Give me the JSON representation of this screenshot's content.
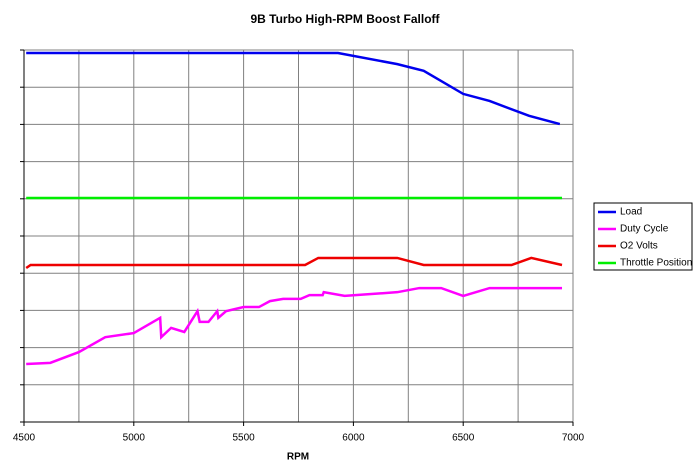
{
  "chart_data": {
    "type": "line",
    "title": "9B Turbo High-RPM Boost Falloff",
    "x_label": "RPM",
    "xlim": [
      4500,
      7000
    ],
    "xticks": [
      4500,
      5000,
      5500,
      6000,
      6500,
      7000
    ],
    "ylim": [
      0,
      10
    ],
    "yticks": [
      0,
      1,
      2,
      3,
      4,
      5,
      6,
      7,
      8,
      9,
      10
    ],
    "ytick_labels": false,
    "grid": true,
    "legend": "right",
    "series": [
      {
        "name": "Load",
        "color": "#0000ee",
        "x": [
          4510,
          5930,
          6200,
          6320,
          6500,
          6620,
          6800,
          6940
        ],
        "values": [
          9.92,
          9.92,
          9.62,
          9.44,
          8.82,
          8.63,
          8.23,
          8.01
        ]
      },
      {
        "name": "Duty Cycle",
        "color": "#ff00ff",
        "x": [
          4510,
          4620,
          4750,
          4870,
          5000,
          5120,
          5125,
          5170,
          5230,
          5290,
          5300,
          5340,
          5380,
          5385,
          5420,
          5500,
          5570,
          5620,
          5680,
          5760,
          5800,
          5860,
          5865,
          5960,
          6200,
          6300,
          6400,
          6500,
          6620,
          6950
        ],
        "values": [
          1.56,
          1.59,
          1.88,
          2.28,
          2.39,
          2.8,
          2.28,
          2.53,
          2.42,
          2.98,
          2.69,
          2.69,
          2.98,
          2.8,
          2.98,
          3.09,
          3.09,
          3.25,
          3.31,
          3.31,
          3.41,
          3.41,
          3.49,
          3.39,
          3.49,
          3.6,
          3.6,
          3.39,
          3.6,
          3.6
        ]
      },
      {
        "name": "O2 Volts",
        "color": "#ee0000",
        "x": [
          4510,
          4530,
          5780,
          5840,
          6200,
          6320,
          6720,
          6810,
          6950
        ],
        "values": [
          4.14,
          4.22,
          4.22,
          4.41,
          4.41,
          4.22,
          4.22,
          4.41,
          4.22
        ]
      },
      {
        "name": "Throttle Position",
        "color": "#00ee00",
        "x": [
          4510,
          6950
        ],
        "values": [
          6.02,
          6.02
        ]
      }
    ]
  }
}
